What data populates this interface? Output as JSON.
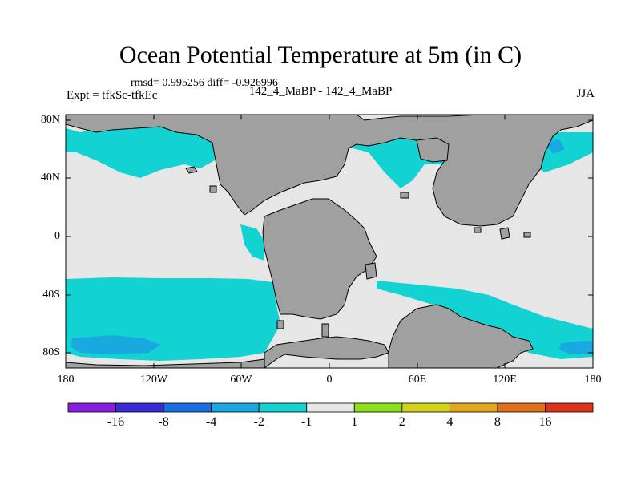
{
  "title": "Ocean Potential Temperature at 5m (in C)",
  "stats_text": "rmsd= 0.995256 diff= -0.926996",
  "experiment": "Expt = tfkSc-tfkEc",
  "case_label": "142_4_MaBP - 142_4_MaBP",
  "season": "JJA",
  "lat_labels": [
    "80N",
    "40N",
    "0",
    "40S",
    "80S"
  ],
  "lon_labels": [
    "180",
    "120W",
    "60W",
    "0",
    "60E",
    "120E",
    "180"
  ],
  "colorbar": {
    "colors": [
      "#8a1ee0",
      "#3a2ad8",
      "#1a6ee0",
      "#1aa8e0",
      "#12d2d2",
      "#e6e6e6",
      "#8ee01a",
      "#d2d21a",
      "#e0a81a",
      "#e06e1a",
      "#e0321a"
    ],
    "labels": [
      "-16",
      "-8",
      "-4",
      "-2",
      "-1",
      "1",
      "2",
      "4",
      "8",
      "16"
    ]
  },
  "colors": {
    "land": "#a0a0a0",
    "neutral_ocean": "#e6e6e6",
    "cool_anomaly": "#12d2d2",
    "strong_cool": "#1aa8e0",
    "very_strong_cool": "#1a6ee0",
    "warm_spot": "#d2d21a"
  }
}
